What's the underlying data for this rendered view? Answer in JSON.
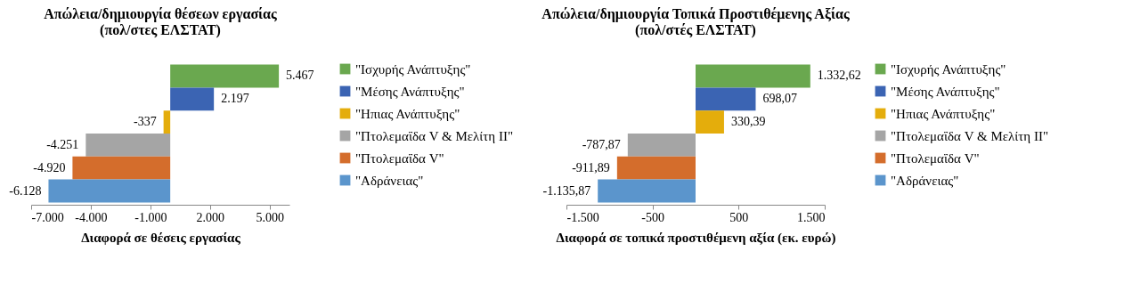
{
  "chart_data": [
    {
      "type": "bar",
      "orientation": "horizontal",
      "title": "Απώλεια/δημιουργία θέσεων εργασίας\n(πολ/στες ΕΛΣΤΑΤ)",
      "xlabel": "Διαφορά σε θέσεις εργασίας",
      "categories": [
        null
      ],
      "series": [
        {
          "name": "\"Ισχυρής Ανάπτυξης\"",
          "color": "#6aa84f",
          "values": [
            5467
          ],
          "value_labels": [
            "5.467"
          ]
        },
        {
          "name": "\"Μέσης Ανάπτυξης\"",
          "color": "#3b64b3",
          "values": [
            2197
          ],
          "value_labels": [
            "2.197"
          ]
        },
        {
          "name": "\"Ηπιας Ανάπτυξης\"",
          "color": "#e4ad0c",
          "values": [
            -337
          ],
          "value_labels": [
            "-337"
          ]
        },
        {
          "name": "\"Πτολεμαΐδα V & Μελίτη ΙΙ\"",
          "color": "#a5a5a5",
          "values": [
            -4251
          ],
          "value_labels": [
            "-4.251"
          ]
        },
        {
          "name": "\"Πτολεμαΐδα V\"",
          "color": "#d46d2c",
          "values": [
            -4920
          ],
          "value_labels": [
            "-4.920"
          ]
        },
        {
          "name": "\"Αδράνειας\"",
          "color": "#5b95cc",
          "values": [
            -6128
          ],
          "value_labels": [
            "-6.128"
          ]
        }
      ],
      "xlim": [
        -7000,
        6000
      ],
      "xticks": [
        {
          "value": -7000,
          "label": "-7.000"
        },
        {
          "value": -4000,
          "label": "-4.000"
        },
        {
          "value": -1000,
          "label": "-1.000"
        },
        {
          "value": 2000,
          "label": "2.000"
        },
        {
          "value": 5000,
          "label": "5.000"
        }
      ],
      "legend": "right",
      "grid": false,
      "tick_labels": "x"
    },
    {
      "type": "bar",
      "orientation": "horizontal",
      "title": "Απώλεια/δημιουργία Τοπικά Προστιθέμενης Αξίας\n(πολ/στές ΕΛΣΤΑΤ)",
      "xlabel": "Διαφορά σε τοπικά  προστιθέμενη  αξία (εκ. ευρώ)",
      "categories": [
        null
      ],
      "series": [
        {
          "name": "\"Ισχυρής Ανάπτυξης\"",
          "color": "#6aa84f",
          "values": [
            1332.62
          ],
          "value_labels": [
            "1.332,62"
          ]
        },
        {
          "name": "\"Μέσης Ανάπτυξης\"",
          "color": "#3b64b3",
          "values": [
            698.07
          ],
          "value_labels": [
            "698,07"
          ]
        },
        {
          "name": "\"Ηπιας Ανάπτυξης\"",
          "color": "#e4ad0c",
          "values": [
            330.39
          ],
          "value_labels": [
            "330,39"
          ]
        },
        {
          "name": "\"Πτολεμαΐδα V & Μελίτη ΙΙ\"",
          "color": "#a5a5a5",
          "values": [
            -787.87
          ],
          "value_labels": [
            "-787,87"
          ]
        },
        {
          "name": "\"Πτολεμαΐδα V\"",
          "color": "#d46d2c",
          "values": [
            -911.89
          ],
          "value_labels": [
            "-911,89"
          ]
        },
        {
          "name": "\"Αδράνειας\"",
          "color": "#5b95cc",
          "values": [
            -1135.87
          ],
          "value_labels": [
            "-1.135,87"
          ]
        }
      ],
      "xlim": [
        -1500,
        1500
      ],
      "xticks": [
        {
          "value": -1500,
          "label": "-1.500"
        },
        {
          "value": -500,
          "label": "-500"
        },
        {
          "value": 500,
          "label": "500"
        },
        {
          "value": 1500,
          "label": "1.500"
        }
      ],
      "legend": "right",
      "grid": false,
      "tick_labels": "x"
    }
  ]
}
